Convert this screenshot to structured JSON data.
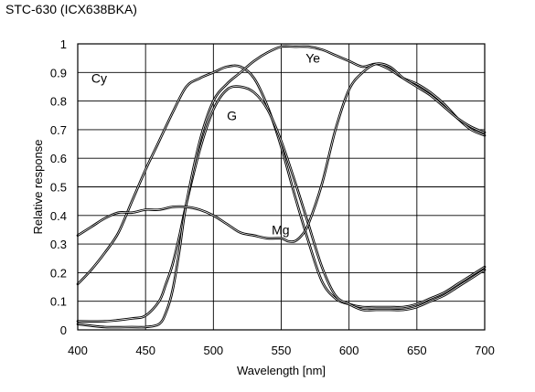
{
  "chart_data": {
    "type": "line",
    "title": "STC-630 (ICX638BKA)",
    "xlabel": "Wavelength [nm]",
    "ylabel": "Relative response",
    "xlim": [
      400,
      700
    ],
    "ylim": [
      0,
      1
    ],
    "grid": true,
    "legend": "none",
    "xticks": [
      400,
      450,
      500,
      550,
      600,
      650,
      700
    ],
    "yticks": [
      0,
      0.1,
      0.2,
      0.3,
      0.4,
      0.5,
      0.6,
      0.7,
      0.8,
      0.9,
      1
    ],
    "xtick_labels": [
      "400",
      "450",
      "500",
      "550",
      "600",
      "650",
      "700"
    ],
    "ytick_labels": [
      "0",
      "0.1",
      "0.2",
      "0.3",
      "0.4",
      "0.5",
      "0.6",
      "0.7",
      "0.8",
      "0.9",
      "1"
    ],
    "series": [
      {
        "name": "Cy",
        "label_at": [
          410,
          0.88
        ],
        "x": [
          400,
          410,
          420,
          430,
          440,
          450,
          460,
          470,
          480,
          490,
          500,
          510,
          520,
          530,
          540,
          550,
          560,
          570,
          580,
          590,
          600,
          610,
          620,
          630,
          640,
          650,
          660,
          670,
          680,
          690,
          700
        ],
        "y": [
          0.16,
          0.21,
          0.27,
          0.34,
          0.45,
          0.56,
          0.66,
          0.76,
          0.85,
          0.88,
          0.9,
          0.92,
          0.92,
          0.88,
          0.78,
          0.64,
          0.47,
          0.31,
          0.17,
          0.11,
          0.09,
          0.08,
          0.08,
          0.08,
          0.08,
          0.09,
          0.11,
          0.13,
          0.16,
          0.19,
          0.22
        ]
      },
      {
        "name": "G",
        "label_at": [
          510,
          0.75
        ],
        "x": [
          400,
          420,
          440,
          450,
          460,
          465,
          470,
          475,
          480,
          490,
          500,
          510,
          520,
          530,
          540,
          550,
          560,
          570,
          580,
          590,
          600,
          610,
          620,
          630,
          640,
          650,
          660,
          670,
          680,
          690,
          700
        ],
        "y": [
          0.03,
          0.03,
          0.04,
          0.05,
          0.1,
          0.16,
          0.23,
          0.33,
          0.44,
          0.63,
          0.77,
          0.84,
          0.85,
          0.83,
          0.77,
          0.66,
          0.52,
          0.37,
          0.22,
          0.12,
          0.09,
          0.07,
          0.07,
          0.07,
          0.07,
          0.08,
          0.1,
          0.12,
          0.15,
          0.18,
          0.21
        ]
      },
      {
        "name": "Ye",
        "label_at": [
          568,
          0.95
        ],
        "x": [
          400,
          420,
          440,
          450,
          460,
          465,
          470,
          475,
          480,
          490,
          500,
          510,
          520,
          530,
          540,
          550,
          560,
          570,
          580,
          590,
          600,
          610,
          620,
          630,
          640,
          650,
          660,
          670,
          680,
          690,
          700
        ],
        "y": [
          0.02,
          0.01,
          0.01,
          0.01,
          0.02,
          0.06,
          0.14,
          0.28,
          0.44,
          0.66,
          0.8,
          0.86,
          0.9,
          0.94,
          0.97,
          0.99,
          0.99,
          0.99,
          0.98,
          0.96,
          0.94,
          0.92,
          0.93,
          0.91,
          0.88,
          0.86,
          0.83,
          0.79,
          0.74,
          0.7,
          0.68
        ]
      },
      {
        "name": "Mg",
        "label_at": [
          543,
          0.35
        ],
        "x": [
          400,
          410,
          420,
          430,
          440,
          450,
          460,
          470,
          480,
          490,
          500,
          510,
          520,
          530,
          540,
          550,
          555,
          560,
          565,
          570,
          580,
          590,
          600,
          610,
          620,
          630,
          640,
          650,
          660,
          670,
          680,
          690,
          700
        ],
        "y": [
          0.33,
          0.36,
          0.39,
          0.41,
          0.41,
          0.42,
          0.42,
          0.43,
          0.43,
          0.42,
          0.4,
          0.37,
          0.34,
          0.33,
          0.32,
          0.32,
          0.31,
          0.31,
          0.33,
          0.37,
          0.51,
          0.7,
          0.84,
          0.9,
          0.93,
          0.92,
          0.88,
          0.85,
          0.82,
          0.78,
          0.74,
          0.71,
          0.69
        ]
      }
    ]
  }
}
